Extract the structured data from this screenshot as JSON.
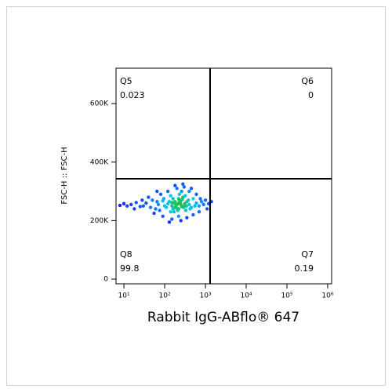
{
  "chart_data": {
    "type": "scatter",
    "x_label": "Rabbit IgG-ABflo® 647",
    "y_label": "FSC-H :: FSC-H",
    "xscale": "log",
    "xlim": [
      6.4,
      1250000
    ],
    "ylim": [
      -16000,
      721000
    ],
    "xticks": [
      {
        "value": 10,
        "label": "10¹"
      },
      {
        "value": 100,
        "label": "10²"
      },
      {
        "value": 1000,
        "label": "10³"
      },
      {
        "value": 10000,
        "label": "10⁴"
      },
      {
        "value": 100000,
        "label": "10⁵"
      },
      {
        "value": 1000000,
        "label": "10⁶"
      }
    ],
    "yticks": [
      0,
      {
        "value": 200000,
        "label": "200K"
      },
      {
        "value": 400000,
        "label": "400K"
      },
      {
        "value": 600000,
        "label": "600K"
      }
    ],
    "colormap": [
      "#1f1fff",
      "#00c8ff",
      "#20c050"
    ],
    "gate": {
      "x": 1300,
      "y": 343000
    },
    "quadrants": [
      {
        "name": "Q5",
        "value": 0.023,
        "corner": "top-left"
      },
      {
        "name": "Q6",
        "value": 0,
        "corner": "top-right"
      },
      {
        "name": "Q7",
        "value": 0.19,
        "corner": "bottom-right"
      },
      {
        "name": "Q8",
        "value": 99.8,
        "corner": "bottom-left"
      }
    ],
    "x": [
      200,
      150,
      300,
      250,
      180,
      120,
      350,
      220,
      280,
      160,
      100,
      400,
      90,
      450,
      230,
      170,
      330,
      260,
      140,
      500,
      70,
      60,
      600,
      700,
      50,
      45,
      800,
      900,
      35,
      30,
      1000,
      1200,
      25,
      20,
      15,
      12,
      10,
      8,
      1400,
      1100,
      200,
      300,
      150,
      250,
      400,
      120,
      350,
      180,
      90,
      500,
      80,
      600,
      40,
      55,
      700,
      65,
      450,
      130,
      280,
      220,
      210,
      240,
      190,
      260,
      230,
      170,
      310,
      200,
      270,
      150,
      180,
      290,
      220,
      250,
      160,
      340,
      130,
      210,
      380,
      110,
      140,
      320,
      95,
      420,
      75,
      550,
      65,
      750,
      28,
      18
    ],
    "y": [
      255000,
      262000,
      250000,
      270000,
      245000,
      258000,
      265000,
      240000,
      280000,
      275000,
      250000,
      255000,
      268000,
      245000,
      290000,
      230000,
      235000,
      300000,
      285000,
      275000,
      255000,
      240000,
      260000,
      250000,
      270000,
      245000,
      265000,
      255000,
      260000,
      250000,
      270000,
      258000,
      248000,
      262000,
      255000,
      250000,
      258000,
      252000,
      265000,
      240000,
      310000,
      315000,
      205000,
      200000,
      300000,
      300000,
      210000,
      320000,
      215000,
      220000,
      290000,
      290000,
      280000,
      225000,
      230000,
      300000,
      310000,
      195000,
      325000,
      215000,
      258000,
      262000,
      252000,
      248000,
      268000,
      260000,
      258000,
      242000,
      272000,
      250000,
      265000,
      245000,
      275000,
      255000,
      240000,
      250000,
      265000,
      235000,
      270000,
      245000,
      230000,
      285000,
      275000,
      240000,
      235000,
      250000,
      265000,
      275000,
      270000,
      240000
    ]
  }
}
